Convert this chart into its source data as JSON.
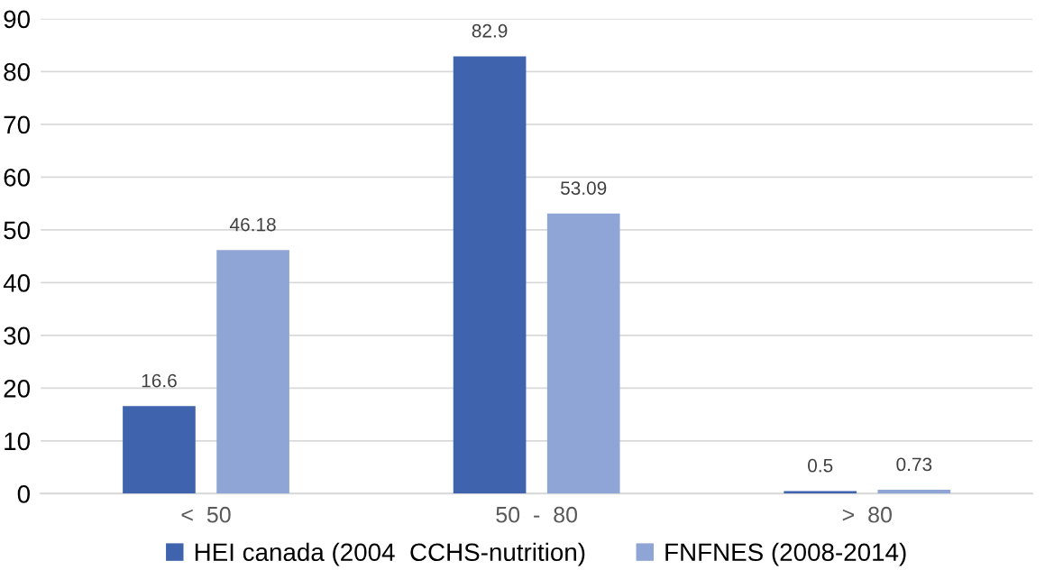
{
  "chart_data": {
    "type": "bar",
    "categories": [
      "<  50",
      "50  -  80",
      ">  80"
    ],
    "series": [
      {
        "name": "HEI canada (2004  CCHS-nutrition)",
        "color": "#3f64ad",
        "values": [
          16.6,
          82.9,
          0.5
        ]
      },
      {
        "name": "FNFNES (2008-2014)",
        "color": "#8fa5d6",
        "values": [
          46.18,
          53.09,
          0.73
        ]
      }
    ],
    "ylim": [
      0,
      90
    ],
    "yticks": [
      0,
      10,
      20,
      30,
      40,
      50,
      60,
      70,
      80,
      90
    ],
    "grid": "y",
    "legend": "bottom",
    "data_labels": true
  }
}
